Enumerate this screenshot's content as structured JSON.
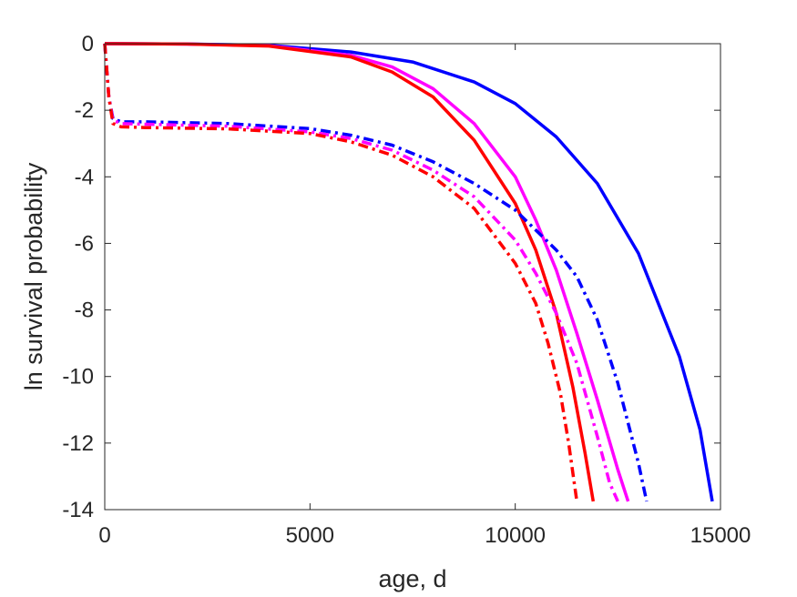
{
  "chart_data": {
    "type": "line",
    "title": "",
    "xlabel": "age, d",
    "ylabel": "ln survival probability",
    "xlim": [
      0,
      15000
    ],
    "ylim": [
      -14,
      0
    ],
    "xticks": [
      0,
      5000,
      10000,
      15000
    ],
    "xtick_labels": [
      "0",
      "5000",
      "10000",
      "15000"
    ],
    "yticks": [
      0,
      -2,
      -4,
      -6,
      -8,
      -10,
      -12,
      -14
    ],
    "ytick_labels": [
      "0",
      "-2",
      "-4",
      "-6",
      "-8",
      "-10",
      "-12",
      "-14"
    ],
    "grid": false,
    "legend": "none",
    "series": [
      {
        "color": "#0000ff",
        "style": "solid",
        "x": [
          0,
          2000,
          4000,
          6000,
          7500,
          9000,
          10000,
          11000,
          12000,
          13000,
          14000,
          14500,
          14800
        ],
        "y": [
          0,
          -0.01,
          -0.05,
          -0.25,
          -0.55,
          -1.15,
          -1.8,
          -2.8,
          -4.2,
          -6.3,
          -9.4,
          -11.6,
          -13.75
        ]
      },
      {
        "color": "#ff00ff",
        "style": "solid",
        "x": [
          0,
          2000,
          4000,
          6000,
          7000,
          8000,
          9000,
          10000,
          10500,
          11000,
          11500,
          12000,
          12500,
          12750
        ],
        "y": [
          0,
          -0.01,
          -0.06,
          -0.35,
          -0.7,
          -1.35,
          -2.4,
          -4.0,
          -5.3,
          -6.8,
          -8.7,
          -10.7,
          -12.8,
          -13.75
        ]
      },
      {
        "color": "#ff0000",
        "style": "solid",
        "x": [
          0,
          2000,
          4000,
          6000,
          7000,
          8000,
          9000,
          10000,
          10500,
          11000,
          11400,
          11700,
          11900
        ],
        "y": [
          0,
          -0.01,
          -0.07,
          -0.4,
          -0.85,
          -1.6,
          -2.9,
          -4.8,
          -6.2,
          -8.1,
          -10.3,
          -12.3,
          -13.75
        ]
      },
      {
        "color": "#0000ff",
        "style": "dashdot",
        "x": [
          0,
          100,
          200,
          400,
          1000,
          3000,
          5000,
          6000,
          7000,
          8000,
          9000,
          10000,
          11000,
          11500,
          12000,
          12500,
          13000,
          13200
        ],
        "y": [
          0,
          -1.6,
          -2.25,
          -2.35,
          -2.35,
          -2.4,
          -2.55,
          -2.75,
          -3.05,
          -3.55,
          -4.2,
          -5.0,
          -6.2,
          -7.0,
          -8.3,
          -10.2,
          -12.6,
          -13.75
        ]
      },
      {
        "color": "#ff00ff",
        "style": "dashdot",
        "x": [
          0,
          100,
          200,
          400,
          1000,
          3000,
          5000,
          6000,
          7000,
          8000,
          9000,
          10000,
          10500,
          11000,
          11500,
          12000,
          12300,
          12500
        ],
        "y": [
          0,
          -1.6,
          -2.3,
          -2.4,
          -2.42,
          -2.48,
          -2.65,
          -2.85,
          -3.2,
          -3.8,
          -4.6,
          -5.9,
          -6.9,
          -8.1,
          -9.6,
          -11.8,
          -13.2,
          -13.75
        ]
      },
      {
        "color": "#ff0000",
        "style": "dashdot",
        "x": [
          0,
          100,
          200,
          400,
          1000,
          3000,
          5000,
          6000,
          7000,
          8000,
          9000,
          10000,
          10500,
          10800,
          11100,
          11300,
          11500
        ],
        "y": [
          0,
          -1.6,
          -2.4,
          -2.5,
          -2.52,
          -2.56,
          -2.7,
          -2.95,
          -3.35,
          -4.0,
          -4.95,
          -6.6,
          -7.8,
          -9.0,
          -10.5,
          -12.0,
          -13.75
        ]
      }
    ]
  }
}
